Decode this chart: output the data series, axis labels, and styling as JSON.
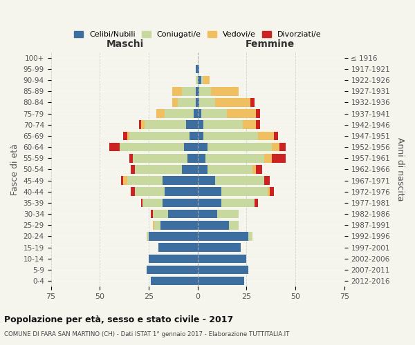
{
  "age_groups": [
    "0-4",
    "5-9",
    "10-14",
    "15-19",
    "20-24",
    "25-29",
    "30-34",
    "35-39",
    "40-44",
    "45-49",
    "50-54",
    "55-59",
    "60-64",
    "65-69",
    "70-74",
    "75-79",
    "80-84",
    "85-89",
    "90-94",
    "95-99",
    "100+"
  ],
  "birth_years": [
    "2012-2016",
    "2007-2011",
    "2002-2006",
    "1997-2001",
    "1992-1996",
    "1987-1991",
    "1982-1986",
    "1977-1981",
    "1972-1976",
    "1967-1971",
    "1962-1966",
    "1957-1961",
    "1952-1956",
    "1947-1951",
    "1942-1946",
    "1937-1941",
    "1932-1936",
    "1927-1931",
    "1922-1926",
    "1917-1921",
    "≤ 1916"
  ],
  "maschi": {
    "celibi": [
      24,
      26,
      25,
      20,
      25,
      19,
      15,
      18,
      17,
      18,
      8,
      5,
      7,
      4,
      6,
      2,
      1,
      1,
      0,
      1,
      0
    ],
    "coniugati": [
      0,
      0,
      0,
      0,
      1,
      3,
      8,
      10,
      15,
      18,
      24,
      28,
      33,
      31,
      21,
      15,
      9,
      7,
      1,
      0,
      0
    ],
    "vedovi": [
      0,
      0,
      0,
      0,
      0,
      1,
      0,
      0,
      0,
      2,
      0,
      0,
      0,
      1,
      2,
      4,
      3,
      5,
      0,
      0,
      0
    ],
    "divorziati": [
      0,
      0,
      0,
      0,
      0,
      0,
      1,
      1,
      2,
      1,
      2,
      2,
      5,
      2,
      1,
      0,
      0,
      0,
      0,
      0,
      0
    ]
  },
  "femmine": {
    "nubili": [
      24,
      26,
      25,
      22,
      26,
      16,
      10,
      12,
      12,
      9,
      5,
      4,
      5,
      3,
      3,
      2,
      1,
      1,
      2,
      1,
      0
    ],
    "coniugate": [
      0,
      0,
      0,
      0,
      2,
      5,
      11,
      17,
      24,
      25,
      23,
      30,
      33,
      28,
      20,
      13,
      8,
      6,
      1,
      0,
      0
    ],
    "vedove": [
      0,
      0,
      0,
      0,
      0,
      0,
      0,
      0,
      1,
      0,
      2,
      4,
      4,
      8,
      7,
      15,
      18,
      14,
      3,
      0,
      0
    ],
    "divorziate": [
      0,
      0,
      0,
      0,
      0,
      0,
      0,
      2,
      2,
      3,
      3,
      7,
      3,
      2,
      2,
      2,
      2,
      0,
      0,
      0,
      0
    ]
  },
  "colors": {
    "celibi": "#3d6ea0",
    "coniugati": "#c8d9a0",
    "vedovi": "#f0c060",
    "divorziati": "#cc2222"
  },
  "title": "Popolazione per età, sesso e stato civile - 2017",
  "subtitle": "COMUNE DI FARA SAN MARTINO (CH) - Dati ISTAT 1° gennaio 2017 - Elaborazione TUTTITALIA.IT",
  "xlabel_left": "Maschi",
  "xlabel_right": "Femmine",
  "ylabel_left": "Fasce di età",
  "ylabel_right": "Anni di nascita",
  "xlim": 75,
  "legend_labels": [
    "Celibi/Nubili",
    "Coniugati/e",
    "Vedovi/e",
    "Divorziati/e"
  ],
  "bg_color": "#f5f5ee",
  "grid_color": "#cccccc"
}
